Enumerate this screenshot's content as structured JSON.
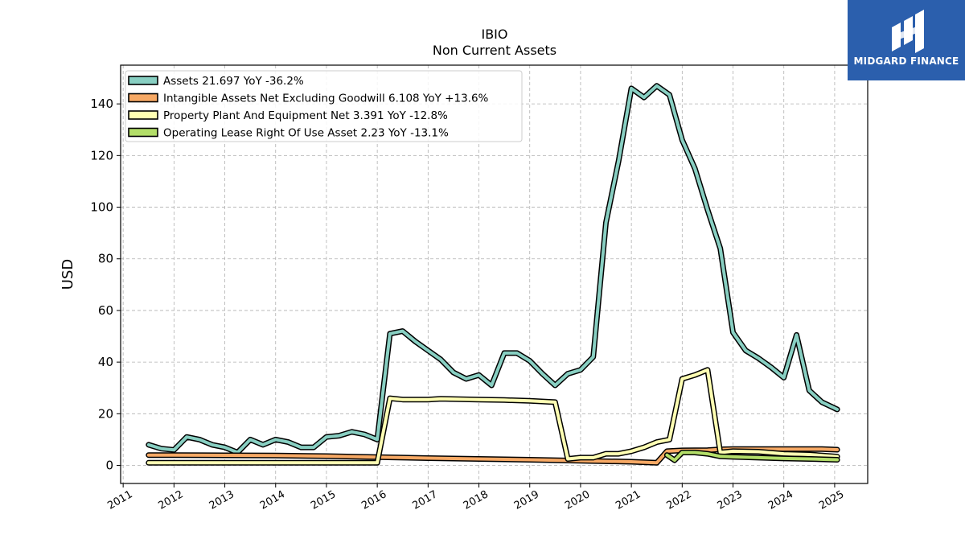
{
  "brand": {
    "name": "MIDGARD FINANCE",
    "bg_color": "#2b5fad"
  },
  "chart_data": {
    "type": "line",
    "title": "IBIO",
    "subtitle": "Non Current  Assets",
    "ylabel": "USD",
    "xlabel": "",
    "ylim": [
      -7,
      155
    ],
    "xlim": [
      2010.95,
      2025.65
    ],
    "y_ticks": [
      0,
      20,
      40,
      60,
      80,
      100,
      120,
      140
    ],
    "x_ticks": [
      2011,
      2012,
      2013,
      2014,
      2015,
      2016,
      2017,
      2018,
      2019,
      2020,
      2021,
      2022,
      2023,
      2024,
      2025
    ],
    "grid": true,
    "legend_position": "top-left",
    "series": [
      {
        "name": "Assets",
        "legend": "Assets  21.697 YoY -36.2%",
        "color": "#88cfc2",
        "x": [
          2011.5,
          2011.75,
          2012.0,
          2012.25,
          2012.5,
          2012.75,
          2013.0,
          2013.25,
          2013.5,
          2013.75,
          2014.0,
          2014.25,
          2014.5,
          2014.75,
          2015.0,
          2015.25,
          2015.5,
          2015.75,
          2016.0,
          2016.25,
          2016.5,
          2016.75,
          2017.0,
          2017.25,
          2017.5,
          2017.75,
          2018.0,
          2018.25,
          2018.5,
          2018.75,
          2019.0,
          2019.25,
          2019.5,
          2019.75,
          2020.0,
          2020.25,
          2020.5,
          2020.75,
          2021.0,
          2021.25,
          2021.5,
          2021.75,
          2022.0,
          2022.25,
          2022.5,
          2022.75,
          2023.0,
          2023.25,
          2023.5,
          2023.75,
          2024.0,
          2024.25,
          2024.5,
          2024.75,
          2025.05
        ],
        "values": [
          8,
          6.5,
          6,
          11,
          10,
          8,
          7,
          5,
          10,
          8,
          10,
          9,
          7,
          7,
          11,
          11.5,
          13,
          12,
          10,
          51,
          52,
          48,
          44.5,
          41,
          36,
          33.5,
          35,
          31,
          43.5,
          43.5,
          40.5,
          35.5,
          31,
          35.5,
          37,
          42,
          94,
          118,
          146,
          142.5,
          147,
          143.5,
          126,
          115,
          99,
          84,
          51.5,
          44.5,
          41.5,
          38,
          34,
          50.5,
          29,
          24.5,
          21.7
        ]
      },
      {
        "name": "Intangible Assets Net Excluding Goodwill",
        "legend": "Intangible Assets Net Excluding Goodwill  6.108 YoY +13.6%",
        "color": "#f7a965",
        "x": [
          2011.5,
          2012.0,
          2013.0,
          2014.0,
          2015.0,
          2016.0,
          2017.0,
          2018.0,
          2019.0,
          2020.0,
          2021.0,
          2021.5,
          2021.7,
          2022.0,
          2022.5,
          2022.75,
          2023.0,
          2023.5,
          2024.0,
          2024.75,
          2025.05
        ],
        "values": [
          4,
          4,
          3.9,
          3.8,
          3.6,
          3.2,
          2.8,
          2.5,
          2.2,
          1.8,
          1.4,
          1.0,
          5.5,
          5.8,
          5.9,
          6.2,
          6.3,
          6.3,
          6.3,
          6.3,
          6.1
        ]
      },
      {
        "name": "Property Plant And Equipment Net",
        "legend": "Property Plant And Equipment Net  3.391 YoY -12.8%",
        "color": "#ffffb3",
        "x": [
          2011.5,
          2012.0,
          2013.0,
          2014.0,
          2015.0,
          2016.0,
          2016.25,
          2016.5,
          2017.0,
          2017.25,
          2018.0,
          2018.5,
          2019.0,
          2019.5,
          2019.75,
          2020.0,
          2020.25,
          2020.5,
          2020.75,
          2021.0,
          2021.25,
          2021.5,
          2021.75,
          2022.0,
          2022.25,
          2022.5,
          2022.75,
          2023.0,
          2023.5,
          2024.0,
          2024.5,
          2025.05
        ],
        "values": [
          1,
          1,
          1,
          1,
          1,
          1,
          26,
          25.5,
          25.5,
          25.8,
          25.5,
          25.3,
          25,
          24.5,
          2.5,
          3,
          3,
          4.5,
          4.5,
          5.5,
          7,
          9,
          10,
          33.5,
          35,
          37,
          5,
          5.5,
          5.3,
          4.5,
          4.2,
          3.4
        ]
      },
      {
        "name": "Operating Lease Right Of Use Asset",
        "legend": "Operating Lease Right Of Use Asset  2.23 YoY -13.1%",
        "color": "#b3de69",
        "x": [
          2021.7,
          2021.85,
          2022.0,
          2022.25,
          2022.5,
          2022.75,
          2023.0,
          2023.5,
          2024.0,
          2024.5,
          2025.05
        ],
        "values": [
          4,
          2,
          5,
          5,
          4.5,
          3.5,
          3.3,
          3.0,
          2.7,
          2.5,
          2.2
        ]
      }
    ]
  }
}
